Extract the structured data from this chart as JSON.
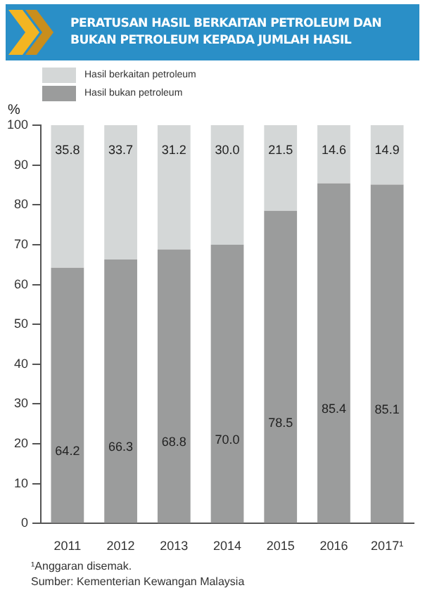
{
  "chart_data": {
    "type": "bar",
    "title": "PERATUSAN HASIL BERKAITAN PETROLEUM DAN BUKAN PETROLEUM KEPADA JUMLAH HASIL",
    "ylabel": "%",
    "categories": [
      "2011",
      "2012",
      "2013",
      "2014",
      "2015",
      "2016",
      "2017¹"
    ],
    "stacked": true,
    "series": [
      {
        "name": "Hasil bukan petroleum",
        "color": "#9b9c9c",
        "values": [
          64.2,
          66.3,
          68.8,
          70.0,
          78.5,
          85.4,
          85.1
        ],
        "value_labels": [
          "64.2",
          "66.3",
          "68.8",
          "70.0",
          "78.5",
          "85.4",
          "85.1"
        ]
      },
      {
        "name": "Hasil berkaitan petroleum",
        "color": "#d4d7d7",
        "values": [
          35.8,
          33.7,
          31.2,
          30.0,
          21.5,
          14.6,
          14.9
        ],
        "value_labels": [
          "35.8",
          "33.7",
          "31.2",
          "30.0",
          "21.5",
          "14.6",
          "14.9"
        ]
      }
    ],
    "ylim": [
      0,
      100
    ],
    "yticks": [
      0,
      10,
      20,
      30,
      40,
      50,
      60,
      70,
      80,
      90,
      100
    ],
    "grid": false,
    "legend": "top left",
    "annotations": [
      "¹Anggaran disemak.",
      "Sumber: Kementerian Kewangan Malaysia"
    ]
  }
}
